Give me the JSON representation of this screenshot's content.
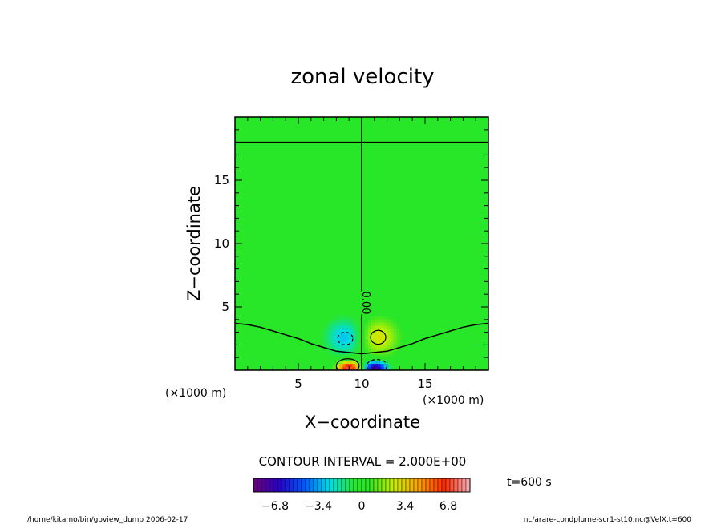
{
  "chart_data": {
    "type": "heatmap",
    "title": "zonal velocity",
    "xlabel": "X−coordinate",
    "ylabel": "Z−coordinate",
    "xlim": [
      0,
      20
    ],
    "ylim": [
      0,
      20
    ],
    "xticks": [
      {
        "value": 5,
        "label": "5"
      },
      {
        "value": 10,
        "label": "10"
      },
      {
        "value": 15,
        "label": "15"
      }
    ],
    "yticks": [
      {
        "value": 5,
        "label": "5"
      },
      {
        "value": 10,
        "label": "10"
      },
      {
        "value": 15,
        "label": "15"
      }
    ],
    "x_unit": "(×1000 m)",
    "y_unit": "(×1000 m)",
    "contour_interval_text": "CONTOUR INTERVAL = 2.000E+00",
    "contour_label": "0.00",
    "colorbar": {
      "range": [
        -8.5,
        8.5
      ],
      "ticks": [
        {
          "value": -6.8,
          "label": "−6.8"
        },
        {
          "value": -3.4,
          "label": "−3.4"
        },
        {
          "value": 0,
          "label": "0"
        },
        {
          "value": 3.4,
          "label": "3.4"
        },
        {
          "value": 6.8,
          "label": "6.8"
        }
      ]
    },
    "blobs": [
      {
        "x": 9.0,
        "z": 0.2,
        "amp": 7.5,
        "sx": 0.9,
        "sz": 0.5
      },
      {
        "x": 11.1,
        "z": 0.2,
        "amp": -7.5,
        "sx": 0.9,
        "sz": 0.5
      },
      {
        "x": 8.7,
        "z": 2.6,
        "amp": -3.0,
        "sx": 1.5,
        "sz": 1.4
      },
      {
        "x": 11.3,
        "z": 2.6,
        "amp": 3.0,
        "sx": 1.5,
        "sz": 1.4
      }
    ],
    "zero_contours": {
      "vertical_x": 10.0,
      "horizontal_z": 18.0,
      "lower_curve": [
        [
          0,
          3.7
        ],
        [
          1,
          3.6
        ],
        [
          2,
          3.4
        ],
        [
          3,
          3.1
        ],
        [
          4,
          2.8
        ],
        [
          5,
          2.5
        ],
        [
          6,
          2.1
        ],
        [
          7,
          1.8
        ],
        [
          8,
          1.5
        ],
        [
          9,
          1.4
        ],
        [
          10,
          1.3
        ],
        [
          11,
          1.4
        ],
        [
          12,
          1.5
        ],
        [
          13,
          1.8
        ],
        [
          14,
          2.1
        ],
        [
          15,
          2.5
        ],
        [
          16,
          2.8
        ],
        [
          17,
          3.1
        ],
        [
          18,
          3.4
        ],
        [
          19,
          3.6
        ],
        [
          20,
          3.7
        ]
      ]
    },
    "dashed_contours": [
      {
        "x": 8.7,
        "z": 2.5,
        "rx": 0.6,
        "rz": 0.5
      },
      {
        "x": 11.2,
        "z": 0.35,
        "rx": 0.8,
        "rz": 0.5
      }
    ],
    "solid_contours": [
      {
        "x": 11.3,
        "z": 2.6,
        "rx": 0.6,
        "rz": 0.55
      },
      {
        "x": 8.9,
        "z": 0.35,
        "rx": 0.9,
        "rz": 0.55
      }
    ]
  },
  "time_text": "t=600 s",
  "footer_left": "/home/kitamo/bin/gpview_dump  2006-02-17",
  "footer_right": "nc/arare-condplume-scr1-st10.nc@VelX,t=600",
  "colors": {
    "background": "#ffffff",
    "axis": "#000000",
    "field_zero": "#28e628"
  }
}
